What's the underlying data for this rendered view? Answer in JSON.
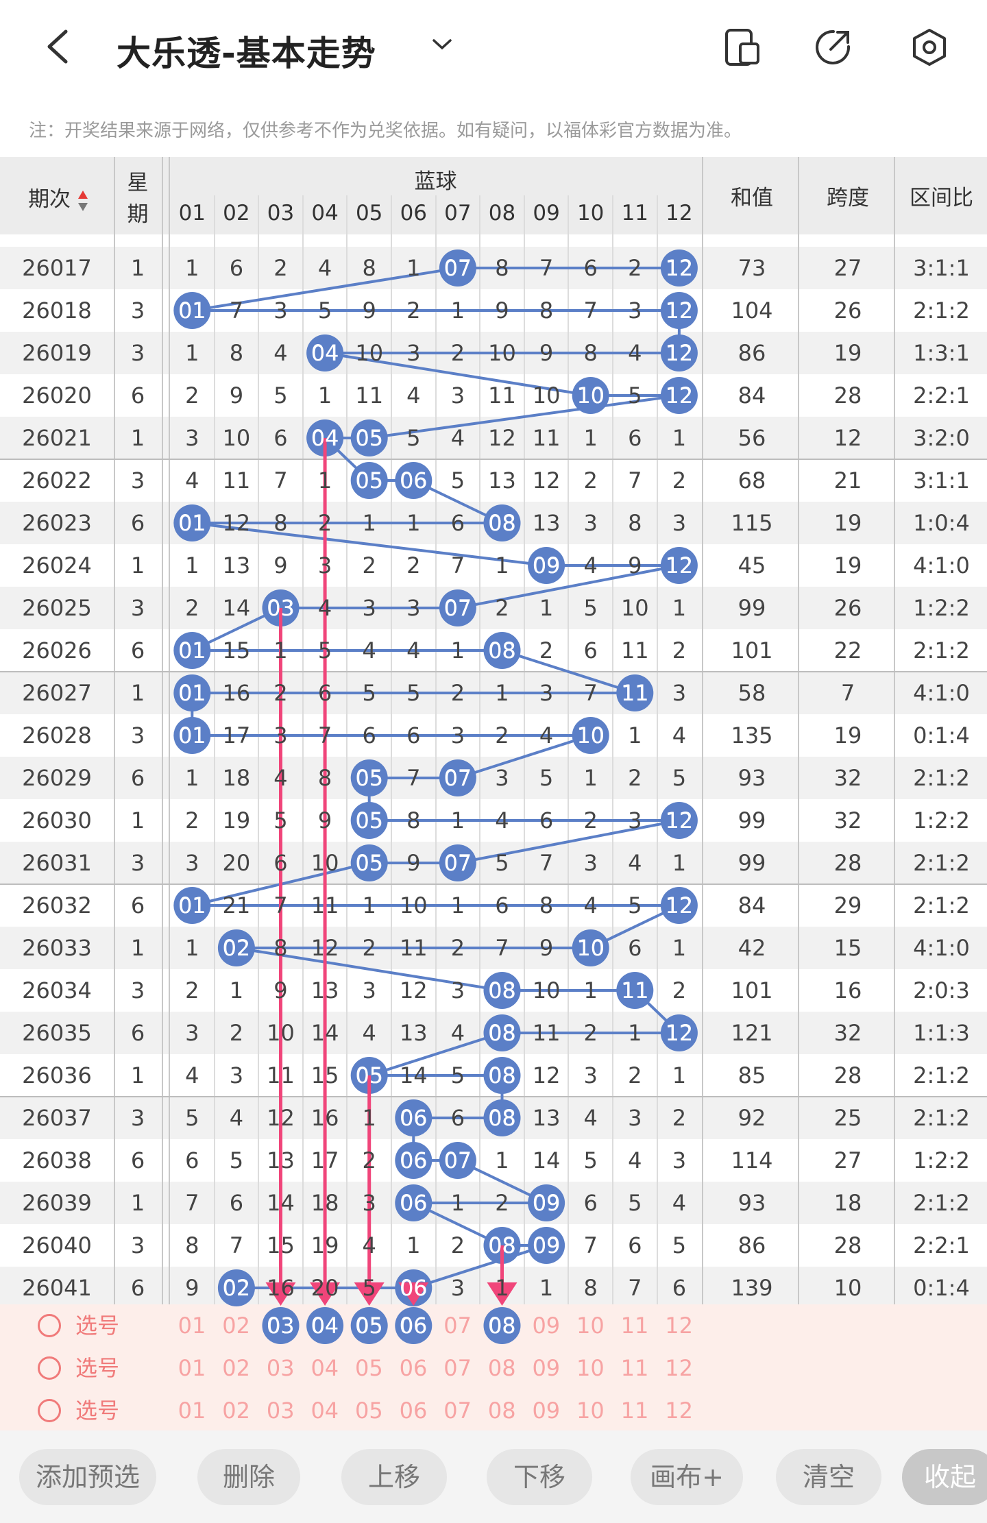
{
  "header": {
    "title": "大乐透-基本走势",
    "icons": [
      "back-icon",
      "chevron-down-icon",
      "phone-layout-icon",
      "share-icon",
      "settings-icon"
    ]
  },
  "note": "注：开奖结果来源于网络，仅供参考不作为兑奖依据。如有疑问，以福体彩官方数据为准。",
  "table": {
    "col_period": "期次",
    "col_week_top": "星",
    "col_week_bottom": "期",
    "blue_group": "蓝球",
    "blue_numbers": [
      "01",
      "02",
      "03",
      "04",
      "05",
      "06",
      "07",
      "08",
      "09",
      "10",
      "11",
      "12"
    ],
    "col_sum": "和值",
    "col_span": "跨度",
    "col_ratio": "区间比",
    "rows": [
      {
        "period": "26017",
        "week": "1",
        "cells": [
          "1",
          "6",
          "2",
          "4",
          "8",
          "1",
          "07",
          "8",
          "7",
          "6",
          "2",
          "12"
        ],
        "hits": [
          7,
          12
        ],
        "sum": "73",
        "span": "27",
        "ratio": "3:1:1"
      },
      {
        "period": "26018",
        "week": "3",
        "cells": [
          "01",
          "7",
          "3",
          "5",
          "9",
          "2",
          "1",
          "9",
          "8",
          "7",
          "3",
          "12"
        ],
        "hits": [
          1,
          12
        ],
        "sum": "104",
        "span": "26",
        "ratio": "2:1:2"
      },
      {
        "period": "26019",
        "week": "3",
        "cells": [
          "1",
          "8",
          "4",
          "04",
          "10",
          "3",
          "2",
          "10",
          "9",
          "8",
          "4",
          "12"
        ],
        "hits": [
          4,
          12
        ],
        "sum": "86",
        "span": "19",
        "ratio": "1:3:1"
      },
      {
        "period": "26020",
        "week": "6",
        "cells": [
          "2",
          "9",
          "5",
          "1",
          "11",
          "4",
          "3",
          "11",
          "10",
          "10",
          "5",
          "12"
        ],
        "hits": [
          10,
          12
        ],
        "sum": "84",
        "span": "28",
        "ratio": "2:2:1"
      },
      {
        "period": "26021",
        "week": "1",
        "cells": [
          "3",
          "10",
          "6",
          "04",
          "05",
          "5",
          "4",
          "12",
          "11",
          "1",
          "6",
          "1"
        ],
        "hits": [
          4,
          5
        ],
        "sum": "56",
        "span": "12",
        "ratio": "3:2:0"
      },
      {
        "period": "26022",
        "week": "3",
        "cells": [
          "4",
          "11",
          "7",
          "1",
          "05",
          "06",
          "5",
          "13",
          "12",
          "2",
          "7",
          "2"
        ],
        "hits": [
          5,
          6
        ],
        "sum": "68",
        "span": "21",
        "ratio": "3:1:1"
      },
      {
        "period": "26023",
        "week": "6",
        "cells": [
          "01",
          "12",
          "8",
          "2",
          "1",
          "1",
          "6",
          "08",
          "13",
          "3",
          "8",
          "3"
        ],
        "hits": [
          1,
          8
        ],
        "sum": "115",
        "span": "19",
        "ratio": "1:0:4"
      },
      {
        "period": "26024",
        "week": "1",
        "cells": [
          "1",
          "13",
          "9",
          "3",
          "2",
          "2",
          "7",
          "1",
          "09",
          "4",
          "9",
          "12"
        ],
        "hits": [
          9,
          12
        ],
        "sum": "45",
        "span": "19",
        "ratio": "4:1:0"
      },
      {
        "period": "26025",
        "week": "3",
        "cells": [
          "2",
          "14",
          "03",
          "4",
          "3",
          "3",
          "07",
          "2",
          "1",
          "5",
          "10",
          "1"
        ],
        "hits": [
          3,
          7
        ],
        "sum": "99",
        "span": "26",
        "ratio": "1:2:2"
      },
      {
        "period": "26026",
        "week": "6",
        "cells": [
          "01",
          "15",
          "1",
          "5",
          "4",
          "4",
          "1",
          "08",
          "2",
          "6",
          "11",
          "2"
        ],
        "hits": [
          1,
          8
        ],
        "sum": "101",
        "span": "22",
        "ratio": "2:1:2"
      },
      {
        "period": "26027",
        "week": "1",
        "cells": [
          "01",
          "16",
          "2",
          "6",
          "5",
          "5",
          "2",
          "1",
          "3",
          "7",
          "11",
          "3"
        ],
        "hits": [
          1,
          11
        ],
        "sum": "58",
        "span": "7",
        "ratio": "4:1:0"
      },
      {
        "period": "26028",
        "week": "3",
        "cells": [
          "01",
          "17",
          "3",
          "7",
          "6",
          "6",
          "3",
          "2",
          "4",
          "10",
          "1",
          "4"
        ],
        "hits": [
          1,
          10
        ],
        "sum": "135",
        "span": "19",
        "ratio": "0:1:4"
      },
      {
        "period": "26029",
        "week": "6",
        "cells": [
          "1",
          "18",
          "4",
          "8",
          "05",
          "7",
          "07",
          "3",
          "5",
          "1",
          "2",
          "5"
        ],
        "hits": [
          5,
          7
        ],
        "sum": "93",
        "span": "32",
        "ratio": "2:1:2"
      },
      {
        "period": "26030",
        "week": "1",
        "cells": [
          "2",
          "19",
          "5",
          "9",
          "05",
          "8",
          "1",
          "4",
          "6",
          "2",
          "3",
          "12"
        ],
        "hits": [
          5,
          12
        ],
        "sum": "99",
        "span": "32",
        "ratio": "1:2:2"
      },
      {
        "period": "26031",
        "week": "3",
        "cells": [
          "3",
          "20",
          "6",
          "10",
          "05",
          "9",
          "07",
          "5",
          "7",
          "3",
          "4",
          "1"
        ],
        "hits": [
          5,
          7
        ],
        "sum": "99",
        "span": "28",
        "ratio": "2:1:2"
      },
      {
        "period": "26032",
        "week": "6",
        "cells": [
          "01",
          "21",
          "7",
          "11",
          "1",
          "10",
          "1",
          "6",
          "8",
          "4",
          "5",
          "12"
        ],
        "hits": [
          1,
          12
        ],
        "sum": "84",
        "span": "29",
        "ratio": "2:1:2"
      },
      {
        "period": "26033",
        "week": "1",
        "cells": [
          "1",
          "02",
          "8",
          "12",
          "2",
          "11",
          "2",
          "7",
          "9",
          "10",
          "6",
          "1"
        ],
        "hits": [
          2,
          10
        ],
        "sum": "42",
        "span": "15",
        "ratio": "4:1:0"
      },
      {
        "period": "26034",
        "week": "3",
        "cells": [
          "2",
          "1",
          "9",
          "13",
          "3",
          "12",
          "3",
          "08",
          "10",
          "1",
          "11",
          "2"
        ],
        "hits": [
          8,
          11
        ],
        "sum": "101",
        "span": "16",
        "ratio": "2:0:3"
      },
      {
        "period": "26035",
        "week": "6",
        "cells": [
          "3",
          "2",
          "10",
          "14",
          "4",
          "13",
          "4",
          "08",
          "11",
          "2",
          "1",
          "12"
        ],
        "hits": [
          8,
          12
        ],
        "sum": "121",
        "span": "32",
        "ratio": "1:1:3"
      },
      {
        "period": "26036",
        "week": "1",
        "cells": [
          "4",
          "3",
          "11",
          "15",
          "05",
          "14",
          "5",
          "08",
          "12",
          "3",
          "2",
          "1"
        ],
        "hits": [
          5,
          8
        ],
        "sum": "85",
        "span": "28",
        "ratio": "2:1:2"
      },
      {
        "period": "26037",
        "week": "3",
        "cells": [
          "5",
          "4",
          "12",
          "16",
          "1",
          "06",
          "6",
          "08",
          "13",
          "4",
          "3",
          "2"
        ],
        "hits": [
          6,
          8
        ],
        "sum": "92",
        "span": "25",
        "ratio": "2:1:2"
      },
      {
        "period": "26038",
        "week": "6",
        "cells": [
          "6",
          "5",
          "13",
          "17",
          "2",
          "06",
          "07",
          "1",
          "14",
          "5",
          "4",
          "3"
        ],
        "hits": [
          6,
          7
        ],
        "sum": "114",
        "span": "27",
        "ratio": "1:2:2"
      },
      {
        "period": "26039",
        "week": "1",
        "cells": [
          "7",
          "6",
          "14",
          "18",
          "3",
          "06",
          "1",
          "2",
          "09",
          "6",
          "5",
          "4"
        ],
        "hits": [
          6,
          9
        ],
        "sum": "93",
        "span": "18",
        "ratio": "2:1:2"
      },
      {
        "period": "26040",
        "week": "3",
        "cells": [
          "8",
          "7",
          "15",
          "19",
          "4",
          "1",
          "2",
          "08",
          "09",
          "7",
          "6",
          "5"
        ],
        "hits": [
          8,
          9
        ],
        "sum": "86",
        "span": "28",
        "ratio": "2:2:1"
      },
      {
        "period": "26041",
        "week": "6",
        "cells": [
          "9",
          "02",
          "16",
          "20",
          "5",
          "06",
          "3",
          "1",
          "1",
          "8",
          "7",
          "6"
        ],
        "hits": [
          2,
          6
        ],
        "sum": "139",
        "span": "10",
        "ratio": "0:1:4"
      }
    ]
  },
  "picks": {
    "label": "选号",
    "rows": [
      {
        "selected": [
          3,
          4,
          5,
          6,
          8
        ]
      },
      {
        "selected": []
      },
      {
        "selected": []
      }
    ]
  },
  "toolbar": {
    "add": "添加预选",
    "delete": "删除",
    "up": "上移",
    "down": "下移",
    "canvas": "画布+",
    "clear": "清空",
    "collapse": "收起"
  },
  "colors": {
    "ball": "#5b7fc7",
    "line": "#5b7fc7",
    "arrow": "#f0457a",
    "pick_text": "#f7a3a3",
    "pick_bg": "#fdeeea"
  }
}
